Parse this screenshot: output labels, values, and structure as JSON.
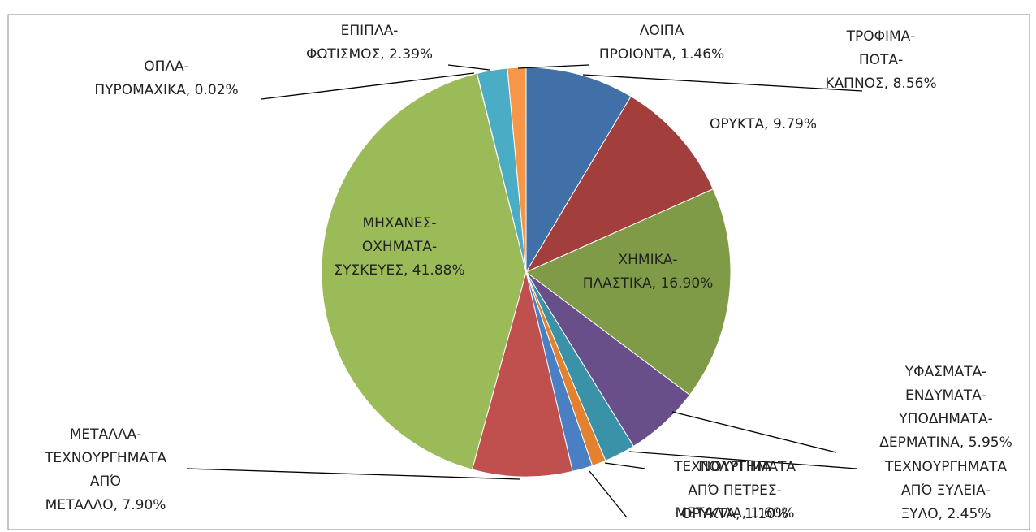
{
  "chart_data": {
    "type": "pie",
    "values": [
      8.56,
      9.79,
      16.9,
      5.95,
      2.45,
      1.1,
      1.6,
      7.9,
      41.88,
      0.02,
      2.39,
      1.46
    ],
    "value_labels": [
      "ΤΡΟΦΙΜΑ-ΠΟΤΑ-ΚΑΠΝΟΣ, 8.56%",
      "ΟΡΥΚΤΑ, 9.79%",
      "ΧΗΜΙΚΑ-ΠΛΑΣΤΙΚΑ, 16.90%",
      "ΥΦΑΣΜΑΤΑ-ΕΝΔΥΜΑΤΑ-ΥΠΟΔΗΜΑΤΑ-ΔΕΡΜΑΤΙΝΑ, 5.95%",
      "ΤΕΧΝΟΥΡΓΗΜΑΤΑ ΑΠΌ ΞΥΛΕΙΑ-ΞΥΛΟ, 2.45%",
      "ΤΕΧΝΟΥΡΓΗΜΑΤΑ ΑΠΌ ΠΕΤΡΕΣ-ΟΡΥΚΤΑ, 1.10%",
      "ΠΟΛΥΤΙΜΑ ΜΕΤΑΛΛΑ, 1.60%",
      "ΜΕΤΑΛΛΑ-ΤΕΧΝΟΥΡΓΗΜΑΤΑ ΑΠΌ ΜΕΤΑΛΛΟ, 7.90%",
      "ΜΗΧΑΝΕΣ-ΟΧΗΜΑΤΑ-ΣΥΣΚΕΥΕΣ, 41.88%",
      "ΟΠΛΑ-ΠΥΡΟΜΑΧΙΚΑ, 0.02%",
      "ΕΠΙΠΛΑ-ΦΩΤΙΣΜΟΣ, 2.39%",
      "ΛΟΙΠΑ ΠΡΟΙΟΝΤΑ, 1.46%"
    ],
    "colors": [
      "#4170a8",
      "#a23f3d",
      "#7f9b47",
      "#684f8a",
      "#3a92a8",
      "#e3812e",
      "#4a7fc4",
      "#c0504d",
      "#9bbb59",
      "#8064a2",
      "#4bacc6",
      "#f79646"
    ]
  }
}
